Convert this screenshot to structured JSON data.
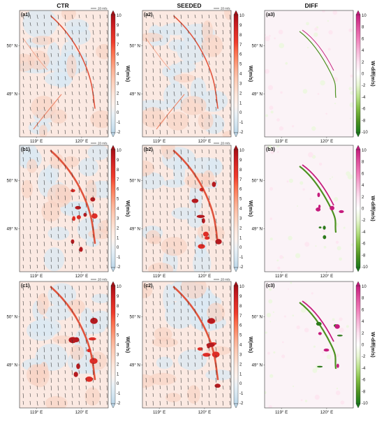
{
  "columns": [
    "CTR",
    "SEEDED",
    "DIFF"
  ],
  "panels": [
    {
      "label": "(a1)",
      "type": "w"
    },
    {
      "label": "(a2)",
      "type": "w"
    },
    {
      "label": "(a3)",
      "type": "diff"
    },
    {
      "label": "(b1)",
      "type": "w"
    },
    {
      "label": "(b2)",
      "type": "w"
    },
    {
      "label": "(b3)",
      "type": "diff"
    },
    {
      "label": "(c1)",
      "type": "w"
    },
    {
      "label": "(c2)",
      "type": "w"
    },
    {
      "label": "(c3)",
      "type": "diff"
    }
  ],
  "lat_ticks": [
    "50° N",
    "49° N"
  ],
  "lon_ticks": [
    "119° E",
    "120° E"
  ],
  "wind_reference": "20 m/s",
  "w_colorbar": {
    "label": "W(m/s)",
    "ticks": [
      "10",
      "9",
      "8",
      "7",
      "6",
      "5",
      "4",
      "3",
      "2",
      "1",
      "0",
      "-1",
      "-2"
    ],
    "colors": [
      "#a50f15",
      "#c81b20",
      "#de2d26",
      "#ef3b2c",
      "#fb6a4a",
      "#fc8d6b",
      "#fcae91",
      "#fdc7b0",
      "#fdd9c8",
      "#feeae0",
      "#fdf3ee",
      "#e9f1f7",
      "#d4e6f1",
      "#bcd7ea"
    ]
  },
  "diff_colorbar": {
    "label": "W-diff(m/s)",
    "ticks": [
      "10",
      "8",
      "6",
      "4",
      "2",
      "0",
      "-2",
      "-4",
      "-6",
      "-8",
      "-10"
    ],
    "colors": [
      "#c51b7d",
      "#de4f9c",
      "#f17cb9",
      "#f7b3d6",
      "#fde0ef",
      "#ffffff",
      "#e6f5d0",
      "#b8e186",
      "#7fbc41",
      "#4d9221",
      "#1b7a1b"
    ]
  }
}
